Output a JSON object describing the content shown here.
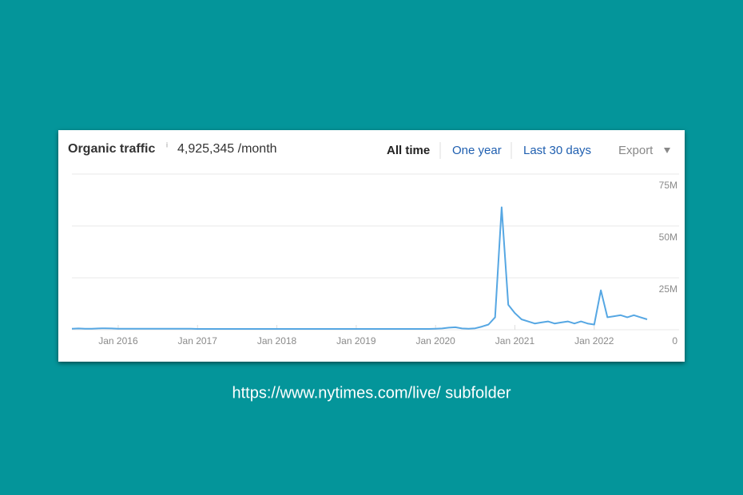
{
  "header": {
    "title": "Organic traffic",
    "info": "i",
    "summary": "4,925,345 /month"
  },
  "controls": [
    "All time",
    "One year",
    "Last 30 days",
    "Export"
  ],
  "caption": "https://www.nytimes.com/live/ subfolder",
  "chart_data": {
    "type": "line",
    "color": "#56a7e3",
    "grid": true,
    "x": [
      "2015-06",
      "2015-07",
      "2015-08",
      "2015-09",
      "2015-10",
      "2015-11",
      "2015-12",
      "2016-01",
      "2016-02",
      "2016-03",
      "2016-04",
      "2016-05",
      "2016-06",
      "2016-07",
      "2016-08",
      "2016-09",
      "2016-10",
      "2016-11",
      "2016-12",
      "2017-01",
      "2017-02",
      "2017-03",
      "2017-04",
      "2017-05",
      "2017-06",
      "2017-07",
      "2017-08",
      "2017-09",
      "2017-10",
      "2017-11",
      "2017-12",
      "2018-01",
      "2018-02",
      "2018-03",
      "2018-04",
      "2018-05",
      "2018-06",
      "2018-07",
      "2018-08",
      "2018-09",
      "2018-10",
      "2018-11",
      "2018-12",
      "2019-01",
      "2019-02",
      "2019-03",
      "2019-04",
      "2019-05",
      "2019-06",
      "2019-07",
      "2019-08",
      "2019-09",
      "2019-10",
      "2019-11",
      "2019-12",
      "2020-01",
      "2020-02",
      "2020-03",
      "2020-04",
      "2020-05",
      "2020-06",
      "2020-07",
      "2020-08",
      "2020-09",
      "2020-10",
      "2020-11",
      "2020-12",
      "2021-01",
      "2021-02",
      "2021-03",
      "2021-04",
      "2021-05",
      "2021-06",
      "2021-07",
      "2021-08",
      "2021-09",
      "2021-10",
      "2021-11",
      "2021-12",
      "2022-01",
      "2022-02",
      "2022-03",
      "2022-04",
      "2022-05",
      "2022-06",
      "2022-07",
      "2022-08",
      "2022-09"
    ],
    "values": [
      500000,
      600000,
      500000,
      500000,
      600000,
      700000,
      600000,
      500000,
      500000,
      500000,
      500000,
      500000,
      500000,
      500000,
      500000,
      500000,
      500000,
      500000,
      500000,
      400000,
      400000,
      400000,
      400000,
      400000,
      400000,
      400000,
      400000,
      400000,
      400000,
      400000,
      400000,
      400000,
      400000,
      400000,
      400000,
      400000,
      400000,
      400000,
      400000,
      400000,
      400000,
      400000,
      400000,
      400000,
      400000,
      400000,
      400000,
      400000,
      400000,
      400000,
      400000,
      400000,
      400000,
      400000,
      400000,
      500000,
      600000,
      1000000,
      1200000,
      600000,
      500000,
      700000,
      1500000,
      2500000,
      6000000,
      59000000,
      12000000,
      8000000,
      5000000,
      4000000,
      3000000,
      3500000,
      4000000,
      3000000,
      3500000,
      4000000,
      3000000,
      4000000,
      3000000,
      2500000,
      19000000,
      6000000,
      6500000,
      7000000,
      6000000,
      7000000,
      6000000,
      5000000
    ],
    "xlim": [
      "2015-06",
      "2022-09"
    ],
    "xticks": [
      {
        "value": "2016-01",
        "label": "Jan 2016"
      },
      {
        "value": "2017-01",
        "label": "Jan 2017"
      },
      {
        "value": "2018-01",
        "label": "Jan 2018"
      },
      {
        "value": "2019-01",
        "label": "Jan 2019"
      },
      {
        "value": "2020-01",
        "label": "Jan 2020"
      },
      {
        "value": "2021-01",
        "label": "Jan 2021"
      },
      {
        "value": "2022-01",
        "label": "Jan 2022"
      }
    ],
    "ylim": [
      0,
      75000000
    ],
    "yticks": [
      0,
      {
        "value": 25000000,
        "label": "25M"
      },
      {
        "value": 50000000,
        "label": "50M"
      },
      {
        "value": 75000000,
        "label": "75M"
      }
    ]
  }
}
